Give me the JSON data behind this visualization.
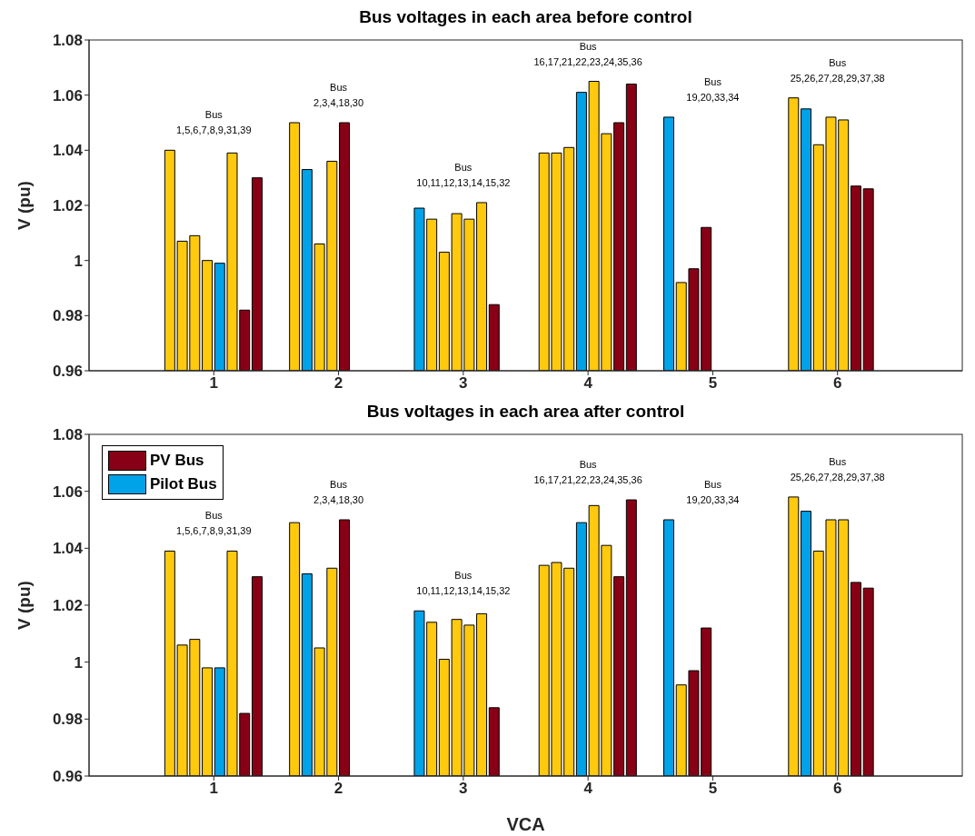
{
  "chart_data": [
    {
      "type": "bar",
      "title": "Bus voltages in each area before control",
      "ylabel": "V (pu)",
      "xlim": [
        0,
        7
      ],
      "xticks": [
        1,
        2,
        3,
        4,
        5,
        6
      ],
      "ylim": [
        0.96,
        1.08
      ],
      "yticks": [
        0.96,
        0.98,
        1,
        1.02,
        1.04,
        1.06,
        1.08
      ],
      "grid": false,
      "legend": false,
      "series": [
        {
          "color": "#ffc90e",
          "x": [
            0.65,
            0.75,
            0.85,
            0.95,
            1.15,
            1.65,
            1.85,
            1.95,
            2.75,
            2.85,
            2.95,
            3.05,
            3.15,
            3.65,
            3.75,
            3.85,
            4.05,
            4.15,
            4.75,
            5.65,
            5.85,
            5.95,
            6.05
          ],
          "values": [
            1.04,
            1.007,
            1.009,
            1.0,
            1.039,
            1.05,
            1.006,
            1.036,
            1.015,
            1.003,
            1.017,
            1.015,
            1.021,
            1.039,
            1.039,
            1.041,
            1.065,
            1.046,
            0.992,
            1.059,
            1.042,
            1.052,
            1.051
          ]
        },
        {
          "color": "#880015",
          "x": [
            1.25,
            1.35,
            2.05,
            3.25,
            4.25,
            4.35,
            4.85,
            4.95,
            6.15,
            6.25
          ],
          "values": [
            0.982,
            1.03,
            1.05,
            0.984,
            1.05,
            1.064,
            0.997,
            1.012,
            1.027,
            1.026
          ]
        },
        {
          "color": "#00a2e8",
          "x": [
            1.05,
            1.75,
            2.65,
            3.95,
            4.65,
            5.75
          ],
          "values": [
            0.999,
            1.033,
            1.019,
            1.061,
            1.052,
            1.055
          ]
        }
      ],
      "annotations": [
        "Bus\n1,5,6,7,8,9,31,39",
        "Bus\n2,3,4,18,30",
        "Bus\n10,11,12,13,14,15,32",
        "Bus\n16,17,21,22,23,24,35,36",
        "Bus\n19,20,33,34",
        "Bus\n25,26,27,28,29,37,38"
      ]
    },
    {
      "type": "bar",
      "title": "Bus voltages in each area after control",
      "xlabel": "VCA",
      "ylabel": "V (pu)",
      "xlim": [
        0,
        7
      ],
      "xticks": [
        1,
        2,
        3,
        4,
        5,
        6
      ],
      "ylim": [
        0.96,
        1.08
      ],
      "yticks": [
        0.96,
        0.98,
        1,
        1.02,
        1.04,
        1.06,
        1.08
      ],
      "grid": false,
      "legend": "top left",
      "series": [
        {
          "color": "#ffc90e",
          "x": [
            0.65,
            0.75,
            0.85,
            0.95,
            1.15,
            1.65,
            1.85,
            1.95,
            2.75,
            2.85,
            2.95,
            3.05,
            3.15,
            3.65,
            3.75,
            3.85,
            4.05,
            4.15,
            4.75,
            5.65,
            5.85,
            5.95,
            6.05
          ],
          "values": [
            1.039,
            1.006,
            1.008,
            0.998,
            1.039,
            1.049,
            1.005,
            1.033,
            1.014,
            1.001,
            1.015,
            1.013,
            1.017,
            1.034,
            1.035,
            1.033,
            1.055,
            1.041,
            0.992,
            1.058,
            1.039,
            1.05,
            1.05
          ]
        },
        {
          "name": "PV Bus",
          "color": "#880015",
          "x": [
            1.25,
            1.35,
            2.05,
            3.25,
            4.25,
            4.35,
            4.85,
            4.95,
            6.15,
            6.25
          ],
          "values": [
            0.982,
            1.03,
            1.05,
            0.984,
            1.03,
            1.057,
            0.997,
            1.012,
            1.028,
            1.026
          ]
        },
        {
          "name": "Pilot Bus",
          "color": "#00a2e8",
          "x": [
            1.05,
            1.75,
            2.65,
            3.95,
            4.65,
            5.75
          ],
          "values": [
            0.998,
            1.031,
            1.018,
            1.049,
            1.05,
            1.053
          ]
        }
      ],
      "annotations": [
        "Bus\n1,5,6,7,8,9,31,39",
        "Bus\n2,3,4,18,30",
        "Bus\n10,11,12,13,14,15,32",
        "Bus\n16,17,21,22,23,24,35,36",
        "Bus\n19,20,33,34",
        "Bus\n25,26,27,28,29,37,38"
      ]
    }
  ]
}
